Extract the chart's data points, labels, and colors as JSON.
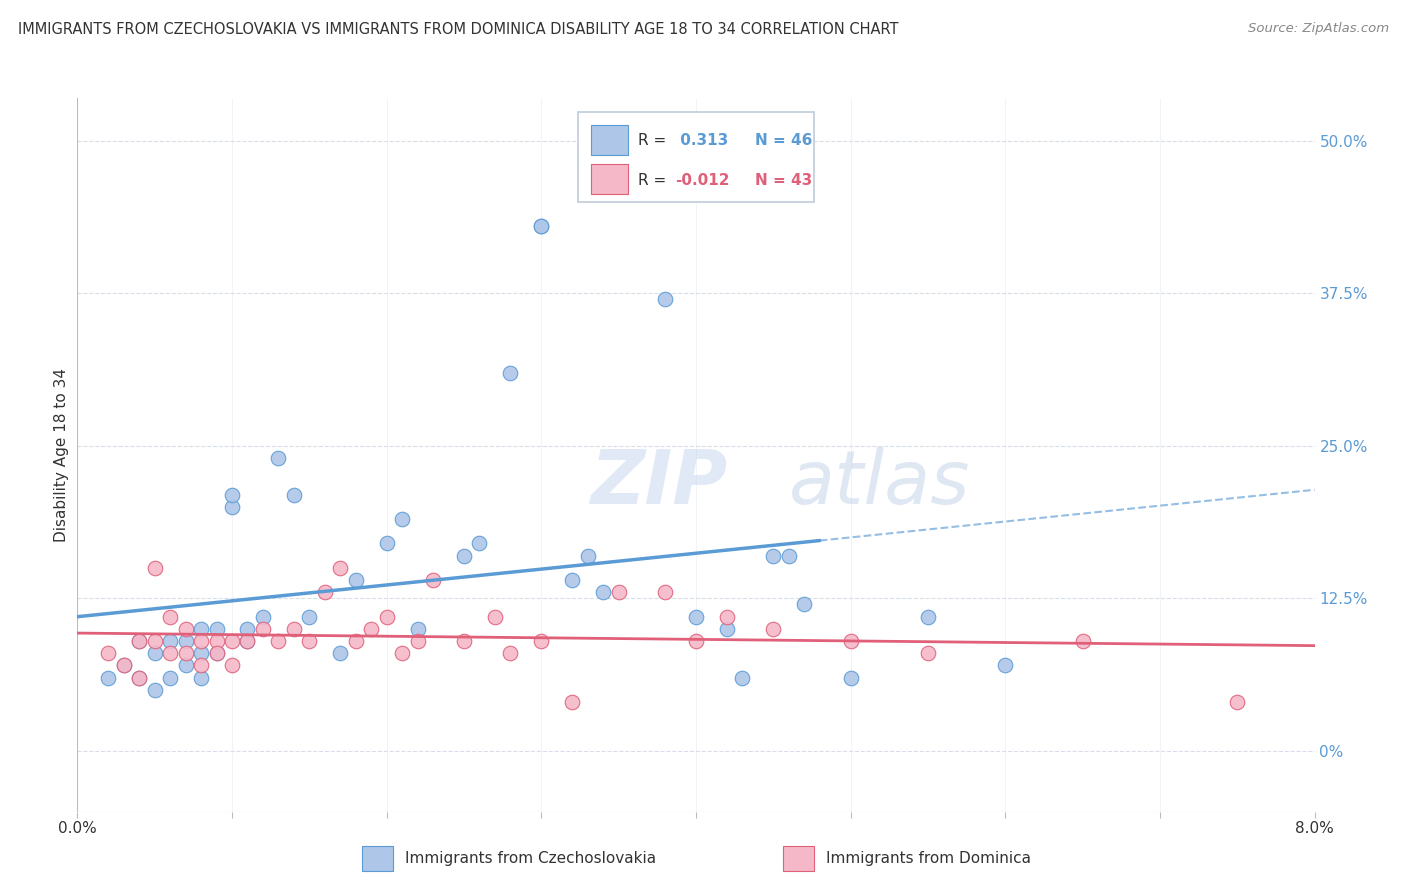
{
  "title": "IMMIGRANTS FROM CZECHOSLOVAKIA VS IMMIGRANTS FROM DOMINICA DISABILITY AGE 18 TO 34 CORRELATION CHART",
  "source": "Source: ZipAtlas.com",
  "ylabel": "Disability Age 18 to 34",
  "ylabel_right_labels": [
    "0%",
    "12.5%",
    "25.0%",
    "37.5%",
    "50.0%"
  ],
  "ylabel_right_values": [
    0.0,
    0.125,
    0.25,
    0.375,
    0.5
  ],
  "xmin": 0.0,
  "xmax": 0.08,
  "ymin": -0.05,
  "ymax": 0.535,
  "R_czech": 0.313,
  "N_czech": 46,
  "R_dominica": -0.012,
  "N_dominica": 43,
  "color_czech": "#aec6e8",
  "color_czech_line": "#5b9bd5",
  "color_dominica": "#f4b8c8",
  "color_dominica_line": "#e0607a",
  "watermark_zip": "ZIP",
  "watermark_atlas": "atlas",
  "czech_x": [
    0.002,
    0.003,
    0.004,
    0.004,
    0.005,
    0.005,
    0.006,
    0.006,
    0.007,
    0.007,
    0.008,
    0.008,
    0.008,
    0.009,
    0.009,
    0.01,
    0.01,
    0.011,
    0.011,
    0.012,
    0.013,
    0.014,
    0.015,
    0.017,
    0.018,
    0.02,
    0.021,
    0.022,
    0.025,
    0.026,
    0.028,
    0.03,
    0.03,
    0.032,
    0.033,
    0.034,
    0.038,
    0.04,
    0.042,
    0.043,
    0.045,
    0.046,
    0.047,
    0.05,
    0.055,
    0.06
  ],
  "czech_y": [
    0.06,
    0.07,
    0.06,
    0.09,
    0.05,
    0.08,
    0.09,
    0.06,
    0.09,
    0.07,
    0.1,
    0.08,
    0.06,
    0.1,
    0.08,
    0.2,
    0.21,
    0.09,
    0.1,
    0.11,
    0.24,
    0.21,
    0.11,
    0.08,
    0.14,
    0.17,
    0.19,
    0.1,
    0.16,
    0.17,
    0.31,
    0.43,
    0.43,
    0.14,
    0.16,
    0.13,
    0.37,
    0.11,
    0.1,
    0.06,
    0.16,
    0.16,
    0.12,
    0.06,
    0.11,
    0.07
  ],
  "dominica_x": [
    0.002,
    0.003,
    0.004,
    0.004,
    0.005,
    0.005,
    0.006,
    0.006,
    0.007,
    0.007,
    0.008,
    0.008,
    0.009,
    0.009,
    0.01,
    0.01,
    0.011,
    0.012,
    0.013,
    0.014,
    0.015,
    0.016,
    0.017,
    0.018,
    0.019,
    0.02,
    0.021,
    0.022,
    0.023,
    0.025,
    0.027,
    0.028,
    0.03,
    0.032,
    0.035,
    0.038,
    0.04,
    0.042,
    0.045,
    0.05,
    0.055,
    0.065,
    0.075
  ],
  "dominica_y": [
    0.08,
    0.07,
    0.06,
    0.09,
    0.15,
    0.09,
    0.11,
    0.08,
    0.1,
    0.08,
    0.09,
    0.07,
    0.09,
    0.08,
    0.09,
    0.07,
    0.09,
    0.1,
    0.09,
    0.1,
    0.09,
    0.13,
    0.15,
    0.09,
    0.1,
    0.11,
    0.08,
    0.09,
    0.14,
    0.09,
    0.11,
    0.08,
    0.09,
    0.04,
    0.13,
    0.13,
    0.09,
    0.11,
    0.1,
    0.09,
    0.08,
    0.09,
    0.04
  ],
  "grid_color": "#d8dde8",
  "bg_color": "#ffffff",
  "title_color": "#333333",
  "source_color": "#888888",
  "legend_box_color": "#e8edf5",
  "legend_edge_color": "#c0ccd8"
}
